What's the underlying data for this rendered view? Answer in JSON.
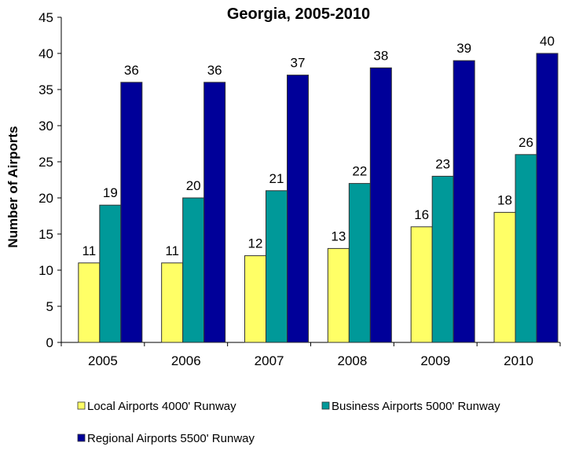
{
  "chart_data": {
    "type": "bar",
    "title": "Georgia, 2005-2010",
    "xlabel": "",
    "ylabel": "Number of Airports",
    "ylim": [
      0,
      45
    ],
    "yticks": [
      0,
      5,
      10,
      15,
      20,
      25,
      30,
      35,
      40,
      45
    ],
    "grid": false,
    "legend_position": "bottom",
    "categories": [
      "2005",
      "2006",
      "2007",
      "2008",
      "2009",
      "2010"
    ],
    "series": [
      {
        "name": "Local Airports 4000' Runway",
        "color": "#FFFF66",
        "values": [
          11,
          11,
          12,
          13,
          16,
          18
        ]
      },
      {
        "name": "Business Airports 5000' Runway",
        "color": "#009999",
        "values": [
          19,
          20,
          21,
          22,
          23,
          26
        ]
      },
      {
        "name": "Regional Airports 5500' Runway",
        "color": "#000099",
        "values": [
          36,
          36,
          37,
          38,
          39,
          40
        ]
      }
    ]
  }
}
